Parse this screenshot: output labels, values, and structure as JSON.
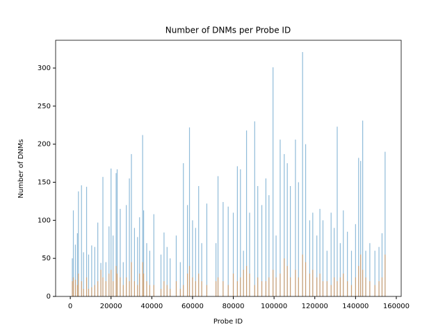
{
  "chart_data": {
    "type": "bar",
    "title": "Number of DNMs per Probe ID",
    "xlabel": "Probe ID",
    "ylabel": "Number of DNMs",
    "x": [
      1000,
      1500,
      2500,
      3500,
      4000,
      5500,
      6500,
      8000,
      9000,
      10500,
      12000,
      13500,
      15000,
      16000,
      17500,
      19000,
      20000,
      21000,
      22500,
      23000,
      24500,
      26000,
      27500,
      29000,
      30000,
      31500,
      33000,
      34000,
      35500,
      36000,
      37500,
      39000,
      41000,
      44500,
      46000,
      47500,
      49000,
      52000,
      54000,
      55500,
      57500,
      58500,
      60000,
      61500,
      63000,
      64500,
      67000,
      71500,
      72500,
      75000,
      77500,
      80000,
      82000,
      83500,
      85000,
      86500,
      88000,
      90500,
      92000,
      94000,
      96000,
      97500,
      99500,
      101000,
      103000,
      105000,
      106500,
      108000,
      110500,
      112000,
      114000,
      115500,
      117500,
      119000,
      121000,
      122500,
      124000,
      126000,
      128000,
      129500,
      131000,
      132500,
      134000,
      136000,
      138000,
      140000,
      141500,
      142500,
      143500,
      145000,
      147000,
      149500,
      151500,
      153000,
      154500
    ],
    "series": [
      {
        "color": "#1f77b4",
        "values": [
          50,
          113,
          68,
          83,
          138,
          146,
          58,
          144,
          55,
          67,
          65,
          97,
          44,
          157,
          45,
          92,
          168,
          80,
          162,
          167,
          115,
          45,
          120,
          155,
          187,
          90,
          78,
          104,
          212,
          113,
          70,
          60,
          108,
          55,
          84,
          65,
          50,
          80,
          45,
          175,
          120,
          222,
          100,
          90,
          145,
          70,
          122,
          70,
          158,
          124,
          118,
          110,
          171,
          167,
          60,
          218,
          110,
          230,
          145,
          120,
          155,
          133,
          301,
          80,
          206,
          187,
          175,
          145,
          206,
          150,
          321,
          200,
          100,
          110,
          80,
          115,
          100,
          60,
          110,
          90,
          223,
          70,
          113,
          85,
          60,
          95,
          182,
          178,
          231,
          60,
          70,
          60,
          65,
          83,
          190
        ]
      },
      {
        "color": "#ff7f0e",
        "values": [
          20,
          25,
          22,
          15,
          30,
          20,
          10,
          25,
          10,
          12,
          15,
          20,
          35,
          25,
          20,
          30,
          35,
          20,
          40,
          30,
          25,
          15,
          25,
          20,
          45,
          20,
          15,
          30,
          45,
          30,
          20,
          15,
          15,
          10,
          20,
          15,
          10,
          20,
          10,
          15,
          30,
          40,
          25,
          20,
          30,
          20,
          15,
          20,
          25,
          20,
          15,
          30,
          20,
          25,
          35,
          40,
          30,
          15,
          25,
          20,
          20,
          25,
          35,
          25,
          30,
          50,
          40,
          25,
          35,
          25,
          55,
          45,
          30,
          35,
          25,
          30,
          20,
          20,
          15,
          25,
          20,
          25,
          30,
          20,
          15,
          25,
          40,
          55,
          35,
          25,
          20,
          15,
          20,
          25,
          55
        ]
      }
    ],
    "alpha": 0.5,
    "xlim": [
      -7200,
      162400
    ],
    "xticks": [
      0,
      20000,
      40000,
      60000,
      80000,
      100000,
      120000,
      140000,
      160000
    ],
    "ylim": [
      0,
      336.5
    ],
    "yticks": [
      0,
      50,
      100,
      150,
      200,
      250,
      300
    ]
  }
}
